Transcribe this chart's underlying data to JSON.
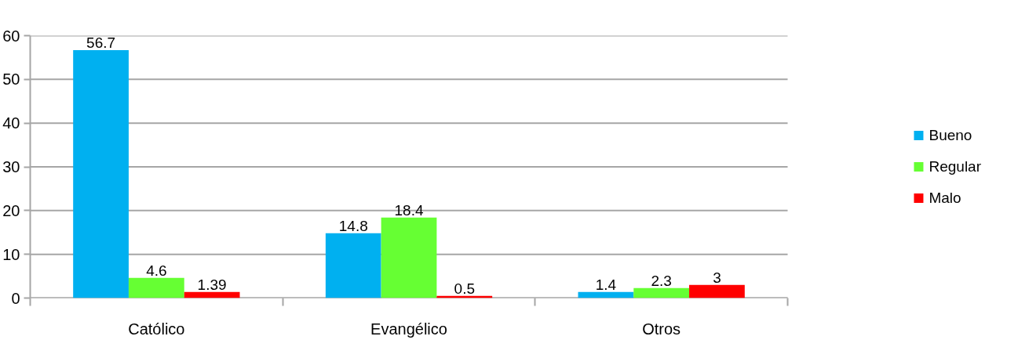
{
  "chart_data": {
    "type": "bar",
    "categories": [
      "Católico",
      "Evangélico",
      "Otros"
    ],
    "series": [
      {
        "name": "Bueno",
        "color": "#00b0f0",
        "values": [
          56.7,
          14.8,
          1.4
        ]
      },
      {
        "name": "Regular",
        "color": "#66ff33",
        "values": [
          4.6,
          18.4,
          2.3
        ]
      },
      {
        "name": "Malo",
        "color": "#ff0000",
        "values": [
          1.39,
          0.5,
          3
        ]
      }
    ],
    "ylim": [
      0,
      60
    ],
    "yticks": [
      0,
      10,
      20,
      30,
      40,
      50,
      60
    ],
    "grid": "y",
    "legend": "right",
    "data_labels": true
  }
}
